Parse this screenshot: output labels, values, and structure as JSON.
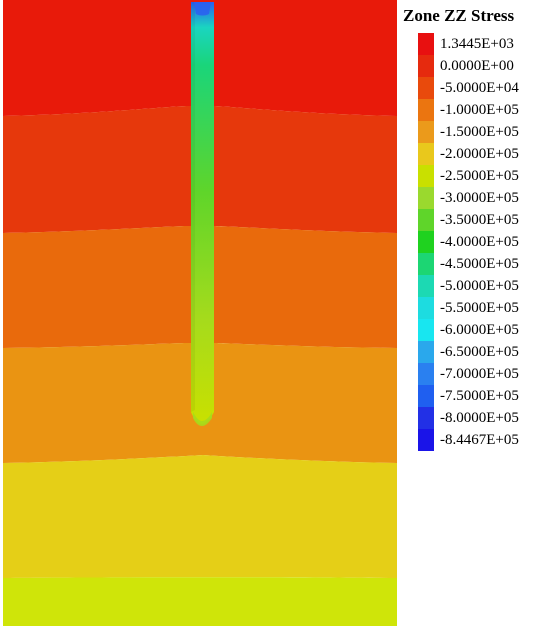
{
  "legend": {
    "title": "Zone ZZ Stress",
    "entries": [
      {
        "label": "1.3445E+03",
        "color": "#e81010"
      },
      {
        "label": "0.0000E+00",
        "color": "#e62a0e"
      },
      {
        "label": "-5.0000E+04",
        "color": "#e94a0c"
      },
      {
        "label": "-1.0000E+05",
        "color": "#eb7510"
      },
      {
        "label": "-1.5000E+05",
        "color": "#eb9a1b"
      },
      {
        "label": "-2.0000E+05",
        "color": "#e9c81c"
      },
      {
        "label": "-2.5000E+05",
        "color": "#c9e000"
      },
      {
        "label": "-3.0000E+05",
        "color": "#9ad92e"
      },
      {
        "label": "-3.5000E+05",
        "color": "#5fd52a"
      },
      {
        "label": "-4.0000E+05",
        "color": "#1fd21f"
      },
      {
        "label": "-4.5000E+05",
        "color": "#1cd673"
      },
      {
        "label": "-5.0000E+05",
        "color": "#1cd9b3"
      },
      {
        "label": "-5.5000E+05",
        "color": "#1ddce0"
      },
      {
        "label": "-6.0000E+05",
        "color": "#18e6f0"
      },
      {
        "label": "-6.5000E+05",
        "color": "#2aa8ec"
      },
      {
        "label": "-7.0000E+05",
        "color": "#2a80f0"
      },
      {
        "label": "-7.5000E+05",
        "color": "#1f5ff0"
      },
      {
        "label": "-8.0000E+05",
        "color": "#2230e6"
      },
      {
        "label": "-8.4467E+05",
        "color": "#1a14e8"
      }
    ]
  },
  "plot": {
    "band_colors": [
      "#e81a0a",
      "#e6380c",
      "#e96a0c",
      "#ea9412",
      "#e5cf17",
      "#cfe509"
    ],
    "shaft_colors": {
      "top": "#2a5ff0",
      "upper": "#1ad57a",
      "middle": "#5fd52a",
      "lower": "#a5db1c",
      "bottom": "#c9e000"
    }
  }
}
